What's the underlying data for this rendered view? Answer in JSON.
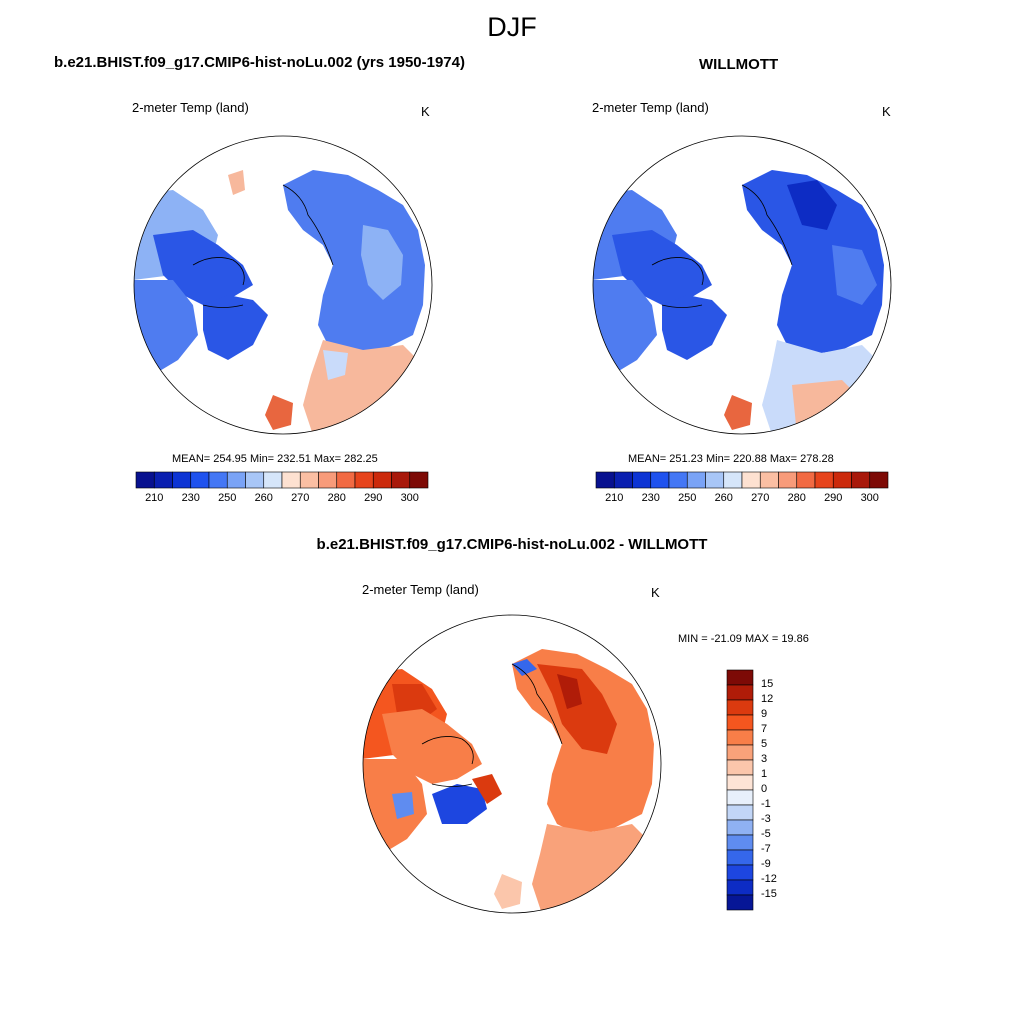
{
  "figure": {
    "title": "DJF"
  },
  "panels": [
    {
      "title": "b.e21.BHIST.f09_g17.CMIP6-hist-noLu.002 (yrs 1950-1974)",
      "left_label": "2-meter Temp (land)",
      "right_label": "K",
      "stats": "MEAN= 254.95  Min= 232.51  Max= 282.25",
      "colorbar": {
        "colors": [
          "#08118f",
          "#0a1fb0",
          "#0d34d4",
          "#1f52ee",
          "#4477f5",
          "#7aa3f6",
          "#a8c6f7",
          "#d6e6fa",
          "#fde1d1",
          "#fbbfa3",
          "#f89b7a",
          "#f26a43",
          "#e7441c",
          "#cc2a0c",
          "#a8180a",
          "#7d0a06"
        ],
        "tick_labels": [
          "210",
          "230",
          "250",
          "260",
          "270",
          "280",
          "290",
          "300"
        ]
      },
      "map_colors": {
        "ocean": "#ffffff",
        "cold": "#2a56e6",
        "cool": "#4f7cf0",
        "mild": "#8db2f5",
        "pale": "#c9dbfa",
        "warm": "#f7b89c",
        "hot": "#e8663f"
      }
    },
    {
      "title": "WILLMOTT",
      "left_label": "2-meter Temp (land)",
      "right_label": "K",
      "stats": "MEAN= 251.23  Min= 220.88  Max= 278.28",
      "colorbar": {
        "colors": [
          "#08118f",
          "#0a1fb0",
          "#0d34d4",
          "#1f52ee",
          "#4477f5",
          "#7aa3f6",
          "#a8c6f7",
          "#d6e6fa",
          "#fde1d1",
          "#fbbfa3",
          "#f89b7a",
          "#f26a43",
          "#e7441c",
          "#cc2a0c",
          "#a8180a",
          "#7d0a06"
        ],
        "tick_labels": [
          "210",
          "230",
          "250",
          "260",
          "270",
          "280",
          "290",
          "300"
        ]
      }
    },
    {
      "title": "b.e21.BHIST.f09_g17.CMIP6-hist-noLu.002 - WILLMOTT",
      "left_label": "2-meter Temp (land)",
      "right_label": "K",
      "stats": "MIN = -21.09 MAX =  19.86",
      "colorbar": {
        "colors": [
          "#7d0a06",
          "#b01c08",
          "#db3a0f",
          "#f4561f",
          "#f87e48",
          "#f9a27a",
          "#fbc6ab",
          "#fde4d6",
          "#e8f0fb",
          "#c2d6f7",
          "#8fb1f3",
          "#5f8cf0",
          "#3567eb",
          "#1d46e0",
          "#0d2cc4",
          "#061696"
        ],
        "tick_labels": [
          "15",
          "12",
          "9",
          "7",
          "5",
          "3",
          "1",
          "0",
          "-1",
          "-3",
          "-5",
          "-7",
          "-9",
          "-12",
          "-15"
        ]
      }
    }
  ]
}
